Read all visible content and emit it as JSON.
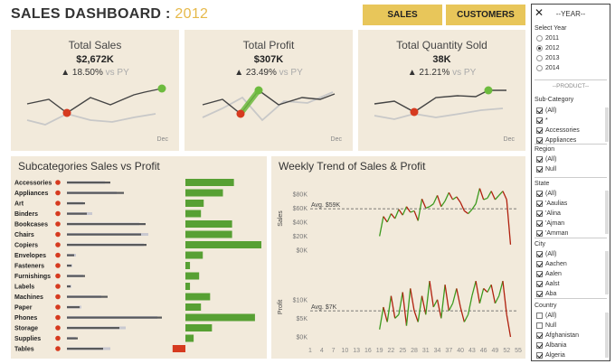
{
  "header": {
    "title_main": "SALES DASHBOARD :",
    "title_year": "2012",
    "nav": [
      {
        "label": "SALES"
      },
      {
        "label": "CUSTOMERS"
      }
    ]
  },
  "kpis": [
    {
      "title": "Total Sales",
      "value": "$2,672K",
      "delta": "▲ 18.50%",
      "vs": "vs PY",
      "dec_label": "Dec"
    },
    {
      "title": "Total Profit",
      "value": "$307K",
      "delta": "▲ 23.49%",
      "vs": "vs PY",
      "dec_label": "Dec"
    },
    {
      "title": "Total Quantity Sold",
      "value": "38K",
      "delta": "▲ 21.21%",
      "vs": "vs PY",
      "dec_label": "Dec"
    }
  ],
  "subcat_section": {
    "title": "Subcategories Sales vs Profit",
    "categories": [
      "Accessories",
      "Appliances",
      "Art",
      "Binders",
      "Bookcases",
      "Chairs",
      "Copiers",
      "Envelopes",
      "Fasteners",
      "Furnishings",
      "Labels",
      "Machines",
      "Paper",
      "Phones",
      "Storage",
      "Supplies",
      "Tables"
    ],
    "sales_cy": [
      48,
      63,
      20,
      22,
      87,
      82,
      88,
      8,
      5,
      20,
      4,
      45,
      14,
      105,
      58,
      12,
      40
    ],
    "sales_py": [
      42,
      55,
      18,
      28,
      80,
      90,
      85,
      10,
      6,
      18,
      5,
      38,
      16,
      100,
      65,
      10,
      48
    ],
    "profit": [
      53,
      41,
      20,
      17,
      51,
      51,
      83,
      19,
      5,
      15,
      5,
      27,
      17,
      76,
      29,
      9,
      -14
    ],
    "colors": {
      "bar": "#58595b",
      "py": "#c8c8d0",
      "profit_pos": "#57a033",
      "profit_neg": "#d63a1f",
      "dot": "#d63a1f"
    }
  },
  "weekly": {
    "title": "Weekly Trend of Sales & Profit",
    "sales_label": "Sales",
    "profit_label": "Profit",
    "sales_ticks": [
      "$80K",
      "$60K",
      "$40K",
      "$20K",
      "$0K"
    ],
    "profit_ticks": [
      "$10K",
      "$5K",
      "$0K"
    ],
    "avg_sales_label": "Avg. $59K",
    "avg_profit_label": "Avg. $7K",
    "x_ticks": [
      "1",
      "4",
      "7",
      "10",
      "13",
      "16",
      "19",
      "22",
      "25",
      "28",
      "31",
      "34",
      "37",
      "40",
      "43",
      "46",
      "49",
      "52",
      "55"
    ],
    "chart_data": {
      "type": "line",
      "x": [
        19,
        20,
        21,
        22,
        23,
        24,
        25,
        26,
        27,
        28,
        29,
        30,
        31,
        32,
        33,
        34,
        35,
        36,
        37,
        38,
        39,
        40,
        41,
        42,
        43,
        44,
        45,
        46,
        47,
        48,
        49,
        50,
        51,
        52,
        53
      ],
      "sales": [
        20,
        48,
        40,
        52,
        45,
        58,
        50,
        62,
        54,
        56,
        42,
        73,
        60,
        62,
        66,
        78,
        62,
        70,
        82,
        72,
        76,
        68,
        56,
        52,
        58,
        66,
        88,
        72,
        74,
        84,
        72,
        78,
        84,
        72,
        8
      ],
      "profit": [
        2,
        8,
        4,
        11,
        5,
        6,
        12,
        3,
        13,
        7,
        4,
        11,
        6,
        15,
        8,
        10,
        5,
        14,
        7,
        9,
        13,
        8,
        4,
        6,
        11,
        15,
        9,
        13,
        12,
        14,
        9,
        11,
        15,
        6,
        0
      ]
    }
  },
  "side_panel": {
    "close": "✕",
    "year_header": "--YEAR--",
    "select_year": "Select Year",
    "years": [
      {
        "label": "2011",
        "on": false
      },
      {
        "label": "2012",
        "on": true
      },
      {
        "label": "2013",
        "on": false
      },
      {
        "label": "2014",
        "on": false
      }
    ],
    "product_header": "--PRODUCT--",
    "subcat_label": "Sub-Category",
    "subcat_items": [
      "(All)",
      "*",
      "Accessories",
      "Appliances"
    ],
    "region_label": "Region",
    "region_items": [
      "(All)",
      "Null"
    ],
    "state_label": "State",
    "state_items": [
      "(All)",
      "'Aaulias",
      "'Alina",
      "'Ajman",
      "'Amman"
    ],
    "city_label": "City",
    "city_items": [
      "(All)",
      "Aachen",
      "Aalen",
      "Aalst",
      "Aba"
    ],
    "country_label": "Country",
    "country_items": [
      {
        "label": "(All)",
        "on": false
      },
      {
        "label": "Null",
        "on": false
      },
      {
        "label": "Afghanistan",
        "on": true
      },
      {
        "label": "Albania",
        "on": true
      },
      {
        "label": "Algeria",
        "on": true
      }
    ]
  }
}
